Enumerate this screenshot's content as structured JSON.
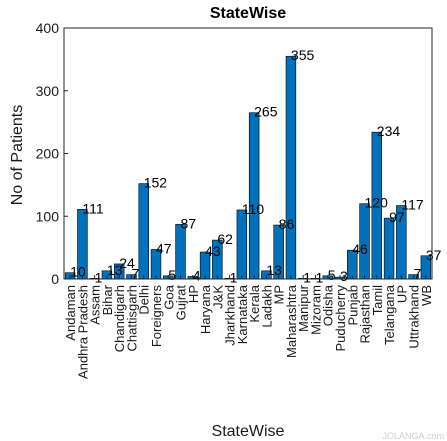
{
  "chart_data": {
    "type": "bar",
    "title": "StateWise",
    "xlabel": "StateWise",
    "ylabel": "No of Patients",
    "ylim": [
      0,
      400
    ],
    "yticks": [
      0,
      100,
      200,
      300,
      400
    ],
    "bar_color": "#0072BD",
    "grid": false,
    "categories": [
      "Andaman",
      "Andhra Pradesh",
      "Assam",
      "Bihar",
      "Chandigarh",
      "Chattisgarh",
      "Delhi",
      "Foreigners",
      "Goa",
      "Gujrat",
      "HP",
      "Haryana",
      "J&K",
      "Jharkhand",
      "Karnataka",
      "Kerala",
      "Ladakh",
      "MP",
      "Maharashtra",
      "Manipur",
      "Mizoram",
      "Odisha",
      "Puducherry",
      "Punjab",
      "Rajasthan",
      "Tamil",
      "Telangana",
      "UP",
      "Uttrakhand",
      "WB"
    ],
    "values": [
      10,
      111,
      1,
      13,
      24,
      7,
      152,
      47,
      5,
      87,
      4,
      43,
      62,
      1,
      110,
      265,
      13,
      86,
      355,
      1,
      1,
      5,
      3,
      46,
      120,
      234,
      97,
      117,
      7,
      37
    ],
    "tick_labels": [
      "Andaman",
      "Andhra Pradesh",
      "Assam",
      "Bihar",
      "Chandigarh",
      "Chattisgarh",
      "Delhi",
      "Foreigners",
      "Goa",
      "Gujrat",
      "HP",
      "Haryana",
      "J&K",
      "Jharkhand",
      "Karnataka",
      "Kerala",
      "Ladakh",
      "MP",
      "Maharashtra",
      "Manipur",
      "Mizoram",
      "Odisha",
      "Puducherry",
      "Punjab",
      "Rajasthan",
      "Tamil",
      "Telangana",
      "UP",
      "Uttrakhand",
      "WB"
    ],
    "data_labels": [
      "10",
      "111",
      "1",
      "13",
      "24",
      "7",
      "152",
      "47",
      "5",
      "87",
      "4",
      "43",
      "62",
      "1",
      "110",
      "265",
      "13",
      "86",
      "355",
      "1",
      "1",
      "5",
      "3",
      "46",
      "120",
      "234",
      "97",
      "117",
      "7",
      "37"
    ]
  },
  "watermark": "JOLANGA.com"
}
